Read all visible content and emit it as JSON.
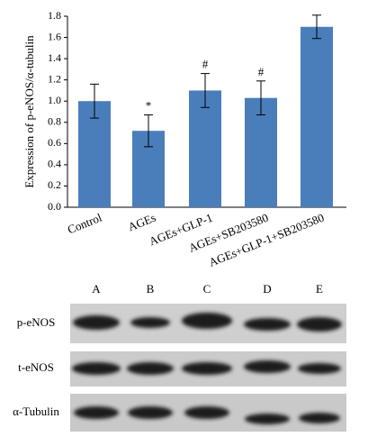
{
  "chart_data": {
    "type": "bar",
    "y_label": "Expression of p-eNOS/α-tubulin",
    "categories": [
      "Control",
      "AGEs",
      "AGEs+GLP-1",
      "AGEs+SB203580",
      "AGEs+GLP-1+SB203580"
    ],
    "values": [
      1.0,
      0.72,
      1.1,
      1.03,
      1.7
    ],
    "errors": [
      0.16,
      0.15,
      0.16,
      0.16,
      0.11
    ],
    "significance": [
      null,
      "*",
      "#",
      "#",
      null
    ],
    "color": "#4a7ebb",
    "ylim": [
      0,
      1.8
    ],
    "yticks": [
      {
        "value": 0,
        "label": "0.0"
      },
      0.2,
      0.4,
      0.6,
      0.8,
      {
        "value": 1,
        "label": "1.0"
      },
      1.2,
      1.4,
      1.6,
      1.8
    ]
  },
  "blot": {
    "lanes": [
      "A",
      "B",
      "C",
      "D",
      "E"
    ],
    "rows": [
      "p-eNOS",
      "t-eNOS",
      "α-Tubulin"
    ]
  }
}
